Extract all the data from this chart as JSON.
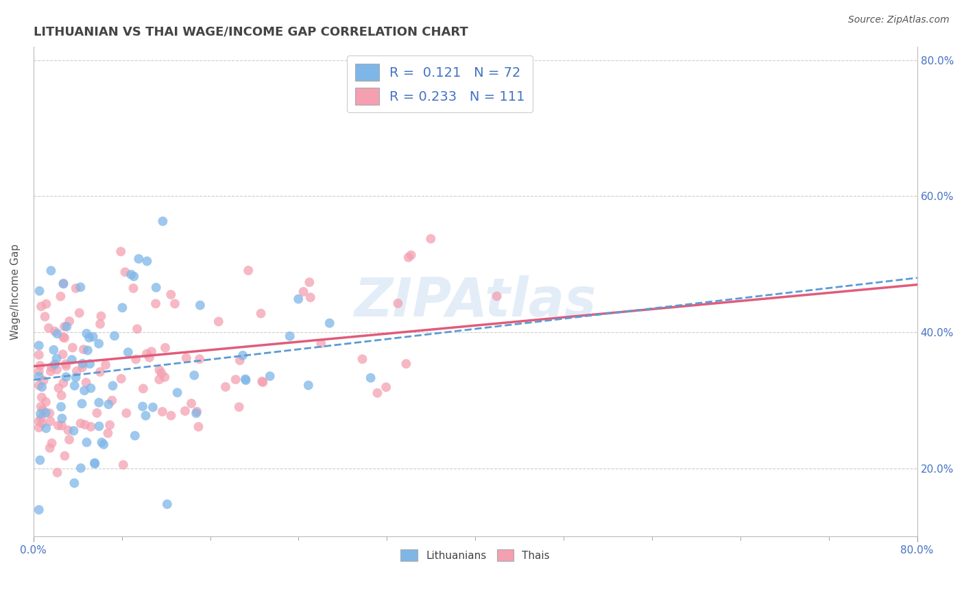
{
  "title": "LITHUANIAN VS THAI WAGE/INCOME GAP CORRELATION CHART",
  "source": "Source: ZipAtlas.com",
  "ylabel": "Wage/Income Gap",
  "xlim": [
    0.0,
    0.8
  ],
  "ylim": [
    0.1,
    0.82
  ],
  "yticks": [
    0.2,
    0.4,
    0.6,
    0.8
  ],
  "blue_color": "#7EB6E8",
  "pink_color": "#F4A0B0",
  "blue_trend_color": "#5B9BD5",
  "pink_trend_color": "#E05C7A",
  "R_blue": 0.121,
  "N_blue": 72,
  "R_pink": 0.233,
  "N_pink": 111,
  "watermark": "ZIPAtlas",
  "title_fontsize": 13,
  "label_fontsize": 11,
  "tick_fontsize": 11,
  "dot_size": 100
}
